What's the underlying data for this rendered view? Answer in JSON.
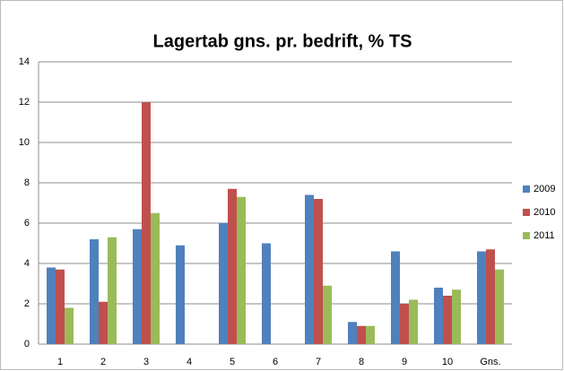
{
  "chart_data": {
    "type": "bar",
    "title": "Lagertab gns. pr. bedrift, % TS",
    "categories": [
      "1",
      "2",
      "3",
      "4",
      "5",
      "6",
      "7",
      "8",
      "9",
      "10",
      "Gns."
    ],
    "series": [
      {
        "name": "2009",
        "color": "#4f81bd",
        "values": [
          3.8,
          5.2,
          5.7,
          4.9,
          6.0,
          5.0,
          7.4,
          1.1,
          4.6,
          2.8,
          4.6
        ]
      },
      {
        "name": "2010",
        "color": "#c0504d",
        "values": [
          3.7,
          2.1,
          12,
          null,
          7.7,
          null,
          7.2,
          0.9,
          2.0,
          2.4,
          4.7
        ]
      },
      {
        "name": "2011",
        "color": "#9bbb59",
        "values": [
          1.8,
          5.3,
          6.5,
          null,
          7.3,
          null,
          2.9,
          0.9,
          2.2,
          2.7,
          3.7
        ]
      }
    ],
    "ylim": [
      0,
      14
    ],
    "yticks": [
      0,
      2,
      4,
      6,
      8,
      10,
      12,
      14
    ],
    "grid": true,
    "legend": "right"
  }
}
